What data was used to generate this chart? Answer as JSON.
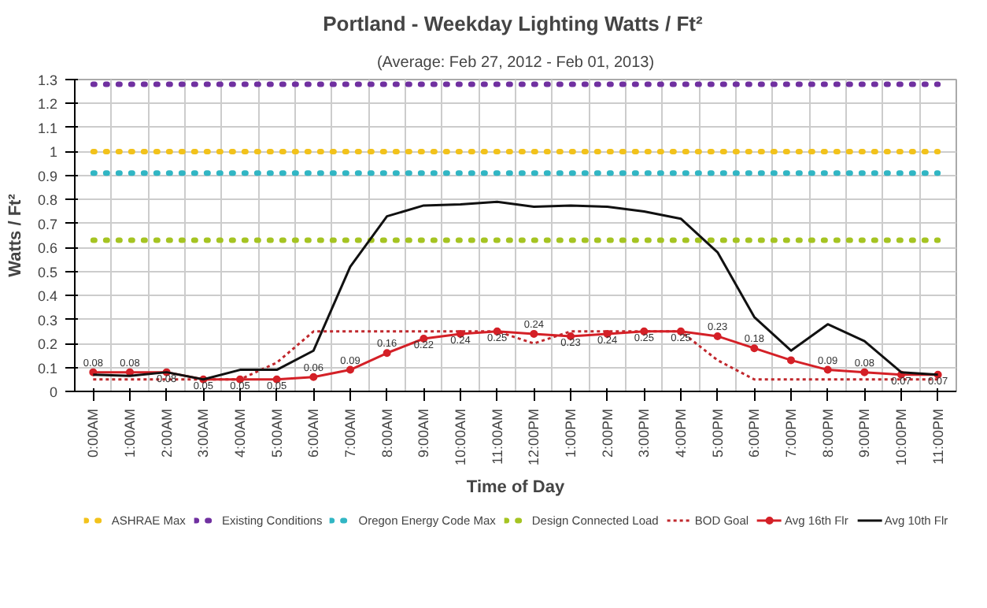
{
  "chart_data": {
    "type": "line",
    "title": "Portland - Weekday  Lighting Watts / Ft²",
    "subtitle": "(Average: Feb 27, 2012 - Feb 01, 2013)",
    "xlabel": "Time of Day",
    "ylabel": "Watts / Ft²",
    "categories": [
      "0:00AM",
      "1:00AM",
      "2:00AM",
      "3:00AM",
      "4:00AM",
      "5:00AM",
      "6:00AM",
      "7:00AM",
      "8:00AM",
      "9:00AM",
      "10:00AM",
      "11:00AM",
      "12:00PM",
      "1:00PM",
      "2:00PM",
      "3:00PM",
      "4:00PM",
      "5:00PM",
      "6:00PM",
      "7:00PM",
      "8:00PM",
      "9:00PM",
      "10:00PM",
      "11:00PM"
    ],
    "ylim": [
      0,
      1.3
    ],
    "yticks": [
      0,
      0.1,
      0.2,
      0.3,
      0.4,
      0.5,
      0.6,
      0.7,
      0.8,
      0.9,
      1,
      1.1,
      1.2,
      1.3
    ],
    "grid": true,
    "legend": "bottom",
    "series": [
      {
        "name": "ASHRAE Max",
        "color": "#f2c21b",
        "line_style": "dotted",
        "marker": "none",
        "values": [
          1,
          1,
          1,
          1,
          1,
          1,
          1,
          1,
          1,
          1,
          1,
          1,
          1,
          1,
          1,
          1,
          1,
          1,
          1,
          1,
          1,
          1,
          1,
          1
        ]
      },
      {
        "name": "Existing Conditions",
        "color": "#7030a0",
        "line_style": "dotted",
        "marker": "none",
        "values": [
          1.28,
          1.28,
          1.28,
          1.28,
          1.28,
          1.28,
          1.28,
          1.28,
          1.28,
          1.28,
          1.28,
          1.28,
          1.28,
          1.28,
          1.28,
          1.28,
          1.28,
          1.28,
          1.28,
          1.28,
          1.28,
          1.28,
          1.28,
          1.28
        ]
      },
      {
        "name": "Oregon Energy Code Max",
        "color": "#31b6c4",
        "line_style": "dotted",
        "marker": "none",
        "values": [
          0.91,
          0.91,
          0.91,
          0.91,
          0.91,
          0.91,
          0.91,
          0.91,
          0.91,
          0.91,
          0.91,
          0.91,
          0.91,
          0.91,
          0.91,
          0.91,
          0.91,
          0.91,
          0.91,
          0.91,
          0.91,
          0.91,
          0.91,
          0.91
        ]
      },
      {
        "name": "Design Connected Load",
        "color": "#a5c422",
        "line_style": "dotted",
        "marker": "none",
        "values": [
          0.63,
          0.63,
          0.63,
          0.63,
          0.63,
          0.63,
          0.63,
          0.63,
          0.63,
          0.63,
          0.63,
          0.63,
          0.63,
          0.63,
          0.63,
          0.63,
          0.63,
          0.63,
          0.63,
          0.63,
          0.63,
          0.63,
          0.63,
          0.63
        ]
      },
      {
        "name": "BOD Goal",
        "color": "#c0282d",
        "line_style": "dashed",
        "marker": "none",
        "values": [
          0.05,
          0.05,
          0.05,
          0.05,
          0.05,
          0.12,
          0.25,
          0.25,
          0.25,
          0.25,
          0.25,
          0.25,
          0.2,
          0.25,
          0.25,
          0.25,
          0.25,
          0.13,
          0.05,
          0.05,
          0.05,
          0.05,
          0.05,
          0.05
        ]
      },
      {
        "name": "Avg 16th Flr",
        "color": "#d42027",
        "line_style": "solid",
        "marker": "circle",
        "values": [
          0.08,
          0.08,
          0.08,
          0.05,
          0.05,
          0.05,
          0.06,
          0.09,
          0.16,
          0.22,
          0.24,
          0.25,
          0.24,
          0.23,
          0.24,
          0.25,
          0.25,
          0.23,
          0.18,
          0.13,
          0.09,
          0.08,
          0.07,
          0.07
        ],
        "value_labels": [
          "0.08",
          "0.08",
          "0.08",
          "0.05",
          "0.05",
          "0.05",
          "0.06",
          "0.09",
          "0.16",
          "0.22",
          "0.24",
          "0.25",
          "0.24",
          "0.23",
          "0.24",
          "0.25",
          "0.25",
          "0.23",
          "0.18",
          null,
          "0.09",
          "0.08",
          "0.07",
          "0.07"
        ]
      },
      {
        "name": "Avg 10th Flr",
        "color": "#111111",
        "line_style": "solid",
        "marker": "none",
        "values": [
          0.07,
          0.065,
          0.08,
          0.05,
          0.09,
          0.09,
          0.17,
          0.52,
          0.73,
          0.775,
          0.78,
          0.79,
          0.77,
          0.775,
          0.77,
          0.75,
          0.72,
          0.58,
          0.31,
          0.17,
          0.28,
          0.21,
          0.08,
          0.07
        ]
      }
    ]
  }
}
